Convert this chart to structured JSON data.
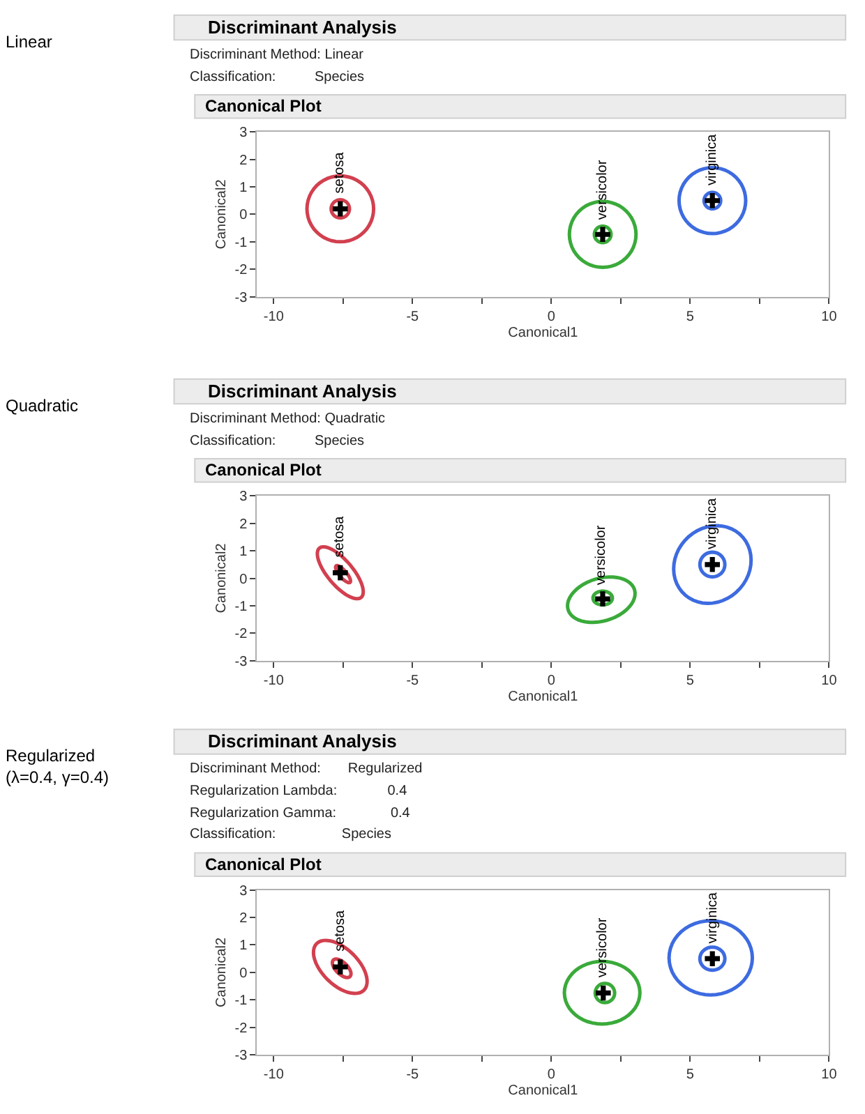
{
  "chart_data": [
    {
      "type": "scatter",
      "marker": "cross",
      "title": "Discriminant Analysis",
      "subtitle": "Canonical Plot",
      "xlabel": "Canonical1",
      "ylabel": "Canonical2",
      "annotations": [
        "Linear",
        "Discriminant Method: Linear",
        "Classification:          Species",
        {
          "text": "setosa",
          "x": -7.6,
          "y": 0.2
        },
        {
          "text": "versicolor",
          "x": 1.85,
          "y": -0.73
        },
        {
          "text": "virginica",
          "x": 5.8,
          "y": 0.5
        }
      ],
      "xlim": [
        -10.6,
        10
      ],
      "ylim": [
        -3,
        3
      ],
      "xticks": [
        -10,
        {
          "value": -7.5,
          "label": null
        },
        -5,
        {
          "value": -2.5,
          "label": null
        },
        0,
        {
          "value": 2.5,
          "label": null
        },
        5,
        {
          "value": 7.5,
          "label": null
        },
        10
      ],
      "yticks": [
        -3,
        -2,
        -1,
        0,
        1,
        2,
        3
      ],
      "grid": false,
      "series": [
        {
          "color": "#000000",
          "x": [
            -7.6,
            1.85,
            5.8
          ],
          "values": [
            0.2,
            -0.73,
            0.5
          ]
        }
      ]
    },
    {
      "type": "scatter",
      "marker": "cross",
      "title": "Discriminant Analysis",
      "subtitle": "Canonical Plot",
      "xlabel": "Canonical1",
      "ylabel": "Canonical2",
      "annotations": [
        "Quadratic",
        "Discriminant Method: Quadratic",
        "Classification:          Species",
        {
          "text": "setosa",
          "x": -7.6,
          "y": 0.2
        },
        {
          "text": "versicolor",
          "x": 1.8,
          "y": -0.78
        },
        {
          "text": "virginica",
          "x": 5.8,
          "y": 0.5
        }
      ],
      "xlim": [
        -10.6,
        10
      ],
      "ylim": [
        -3,
        3
      ],
      "xticks": [
        -10,
        {
          "value": -7.5,
          "label": null
        },
        -5,
        {
          "value": -2.5,
          "label": null
        },
        0,
        {
          "value": 2.5,
          "label": null
        },
        5,
        {
          "value": 7.5,
          "label": null
        },
        10
      ],
      "yticks": [
        -3,
        -2,
        -1,
        0,
        1,
        2,
        3
      ],
      "grid": false,
      "series": [
        {
          "color": "#000000",
          "x": [
            -7.6,
            1.85,
            5.8
          ],
          "values": [
            0.2,
            -0.75,
            0.5
          ]
        }
      ]
    },
    {
      "type": "scatter",
      "marker": "cross",
      "title": "Discriminant Analysis",
      "subtitle": "Canonical Plot",
      "xlabel": "Canonical1",
      "ylabel": "Canonical2",
      "annotations": [
        "Regularized\n(λ=0.4, γ=0.4)",
        "Discriminant Method:       Regularized",
        "Regularization Lambda:             0.4",
        "Regularization Gamma:              0.4",
        "Classification:                 Species",
        {
          "text": "setosa",
          "x": -7.6,
          "y": 0.2
        },
        {
          "text": "versicolor",
          "x": 1.87,
          "y": -0.75
        },
        {
          "text": "virginica",
          "x": 5.8,
          "y": 0.5
        }
      ],
      "xlim": [
        -10.6,
        10
      ],
      "ylim": [
        -3,
        3
      ],
      "xticks": [
        -10,
        {
          "value": -7.5,
          "label": null
        },
        -5,
        {
          "value": -2.5,
          "label": null
        },
        0,
        {
          "value": 2.5,
          "label": null
        },
        5,
        {
          "value": 7.5,
          "label": null
        },
        10
      ],
      "yticks": [
        -3,
        -2,
        -1,
        0,
        1,
        2,
        3
      ],
      "grid": false,
      "series": [
        {
          "color": "#000000",
          "x": [
            -7.6,
            1.87,
            5.8
          ],
          "values": [
            0.2,
            -0.75,
            0.5
          ]
        }
      ]
    }
  ]
}
